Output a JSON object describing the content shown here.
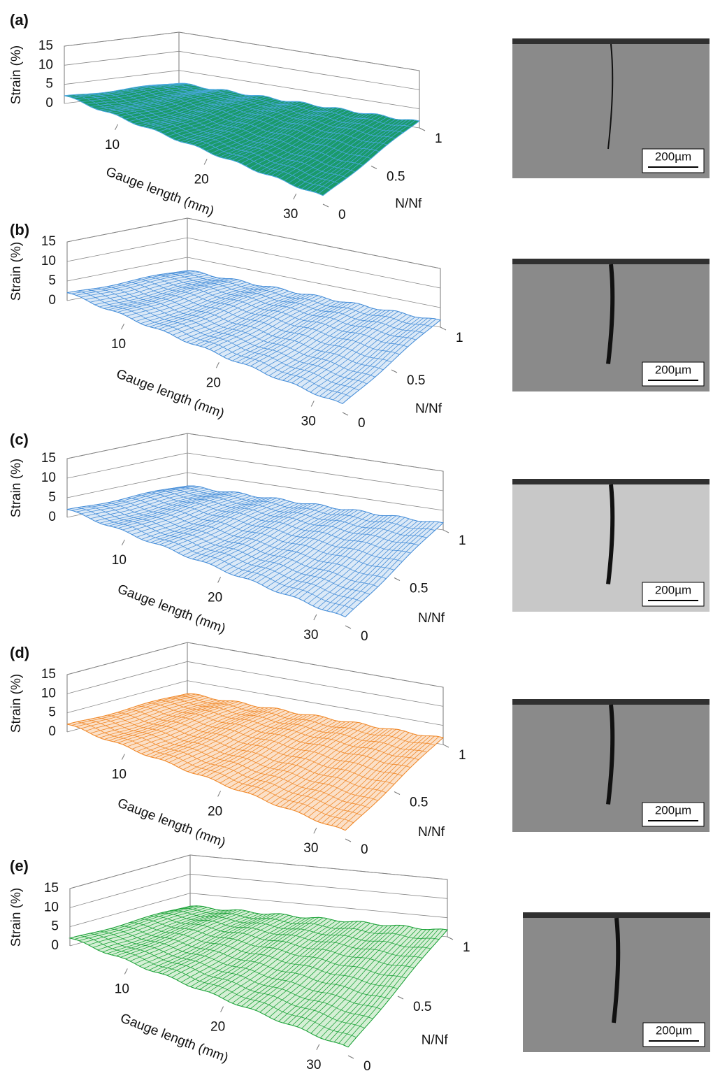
{
  "chart_data": [
    {
      "type": "surface",
      "panel_label": "(a)",
      "zlabel": "Strain (%)",
      "xlabel": "Gauge length (mm)",
      "ylabel": "N/Nf",
      "xlim": [
        4,
        33
      ],
      "ylim": [
        0,
        1
      ],
      "zlim": [
        0,
        15
      ],
      "xticks": [
        10,
        20,
        30
      ],
      "yticks": [
        0,
        0.5,
        1
      ],
      "zticks": [
        0,
        5,
        10,
        15
      ],
      "color": "#1a9a6a",
      "mesh_color": "#4aa8e0",
      "scale_bar": "200µm"
    },
    {
      "type": "surface",
      "panel_label": "(b)",
      "zlabel": "Strain (%)",
      "xlabel": "Gauge length (mm)",
      "ylabel": "N/Nf",
      "xlim": [
        4,
        33
      ],
      "ylim": [
        0,
        1
      ],
      "zlim": [
        0,
        15
      ],
      "xticks": [
        10,
        20,
        30
      ],
      "yticks": [
        0,
        0.5,
        1
      ],
      "zticks": [
        0,
        5,
        10,
        15
      ],
      "color": "#dbe9f7",
      "mesh_color": "#4a90d9",
      "scale_bar": "200µm"
    },
    {
      "type": "surface",
      "panel_label": "(c)",
      "zlabel": "Strain (%)",
      "xlabel": "Gauge length (mm)",
      "ylabel": "N/Nf",
      "xlim": [
        4,
        33
      ],
      "ylim": [
        0,
        1
      ],
      "zlim": [
        0,
        15
      ],
      "xticks": [
        10,
        20,
        30
      ],
      "yticks": [
        0,
        0.5,
        1
      ],
      "zticks": [
        0,
        5,
        10,
        15
      ],
      "color": "#dbe9f7",
      "mesh_color": "#4a90d9",
      "scale_bar": "200µm"
    },
    {
      "type": "surface",
      "panel_label": "(d)",
      "zlabel": "Strain (%)",
      "xlabel": "Gauge length (mm)",
      "ylabel": "N/Nf",
      "xlim": [
        4,
        33
      ],
      "ylim": [
        0,
        1
      ],
      "zlim": [
        0,
        15
      ],
      "xticks": [
        10,
        20,
        30
      ],
      "yticks": [
        0,
        0.5,
        1
      ],
      "zticks": [
        0,
        5,
        10,
        15
      ],
      "color": "#fbe0c8",
      "mesh_color": "#f08a2c",
      "scale_bar": "200µm"
    },
    {
      "type": "surface",
      "panel_label": "(e)",
      "zlabel": "Strain (%)",
      "xlabel": "Gauge length (mm)",
      "ylabel": "N/Nf",
      "xlim": [
        4,
        33
      ],
      "ylim": [
        0,
        1
      ],
      "zlim": [
        0,
        15
      ],
      "xticks": [
        10,
        20,
        30
      ],
      "yticks": [
        0,
        0.5,
        1
      ],
      "zticks": [
        0,
        5,
        10,
        15
      ],
      "color": "#d5efd5",
      "mesh_color": "#1ea33a",
      "scale_bar": "200µm"
    }
  ]
}
